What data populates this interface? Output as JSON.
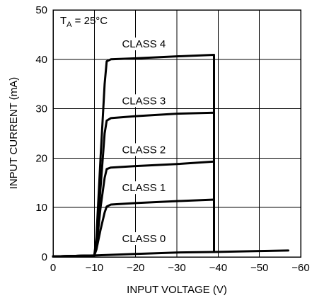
{
  "chart_data": {
    "type": "line",
    "annotation": {
      "prefix": "T",
      "subscript": "A",
      "suffix": " = 25°C"
    },
    "xlabel": "INPUT VOLTAGE (V)",
    "ylabel": "INPUT CURRENT (mA)",
    "xlim": [
      0,
      -60
    ],
    "ylim": [
      0,
      50
    ],
    "x_ticks": [
      0,
      -10,
      -20,
      -30,
      -40,
      -50,
      -60
    ],
    "x_tick_labels": [
      "0",
      "−10",
      "−20",
      "−30",
      "−40",
      "−50",
      "−60"
    ],
    "y_ticks": [
      0,
      10,
      20,
      30,
      40,
      50
    ],
    "y_tick_labels": [
      "0",
      "10",
      "20",
      "30",
      "40",
      "50"
    ],
    "grid": true,
    "line_color": "#000000",
    "series": [
      {
        "name": "CLASS 0",
        "x": [
          0,
          -10,
          -20,
          -30,
          -39,
          -50,
          -57
        ],
        "y": [
          0.1,
          0.3,
          0.6,
          0.9,
          1.0,
          1.2,
          1.3
        ]
      },
      {
        "name": "CLASS 1",
        "x": [
          0,
          -10,
          -10.5,
          -11.5,
          -12.5,
          -13,
          -14,
          -20,
          -30,
          -39,
          -39
        ],
        "y": [
          0.1,
          0.3,
          1.5,
          5.5,
          9.0,
          10.2,
          10.6,
          10.9,
          11.3,
          11.6,
          1.0
        ]
      },
      {
        "name": "CLASS 2",
        "x": [
          0,
          -10,
          -10.5,
          -11.5,
          -12.5,
          -13,
          -14,
          -20,
          -30,
          -39,
          -39
        ],
        "y": [
          0.1,
          0.3,
          2.0,
          10.0,
          16.0,
          17.8,
          18.1,
          18.4,
          18.8,
          19.3,
          1.0
        ]
      },
      {
        "name": "CLASS 3",
        "x": [
          0,
          -10,
          -10.5,
          -11.5,
          -12.5,
          -13,
          -14,
          -20,
          -30,
          -39,
          -39
        ],
        "y": [
          0.1,
          0.3,
          3.0,
          14.0,
          25.0,
          27.6,
          28.1,
          28.5,
          29.0,
          29.2,
          1.0
        ]
      },
      {
        "name": "CLASS 4",
        "x": [
          0,
          -10,
          -10.5,
          -11.5,
          -12.5,
          -13,
          -14,
          -20,
          -30,
          -39,
          -39
        ],
        "y": [
          0.1,
          0.3,
          4.0,
          20.0,
          35.0,
          39.6,
          40.0,
          40.2,
          40.6,
          40.9,
          1.0
        ]
      }
    ],
    "series_labels": [
      {
        "text": "CLASS 4",
        "x": -22,
        "y": 42.4
      },
      {
        "text": "CLASS 3",
        "x": -22,
        "y": 30.9
      },
      {
        "text": "CLASS 2",
        "x": -22,
        "y": 21.0
      },
      {
        "text": "CLASS 1",
        "x": -22,
        "y": 13.3
      },
      {
        "text": "CLASS 0",
        "x": -22,
        "y": 3.0
      }
    ]
  }
}
